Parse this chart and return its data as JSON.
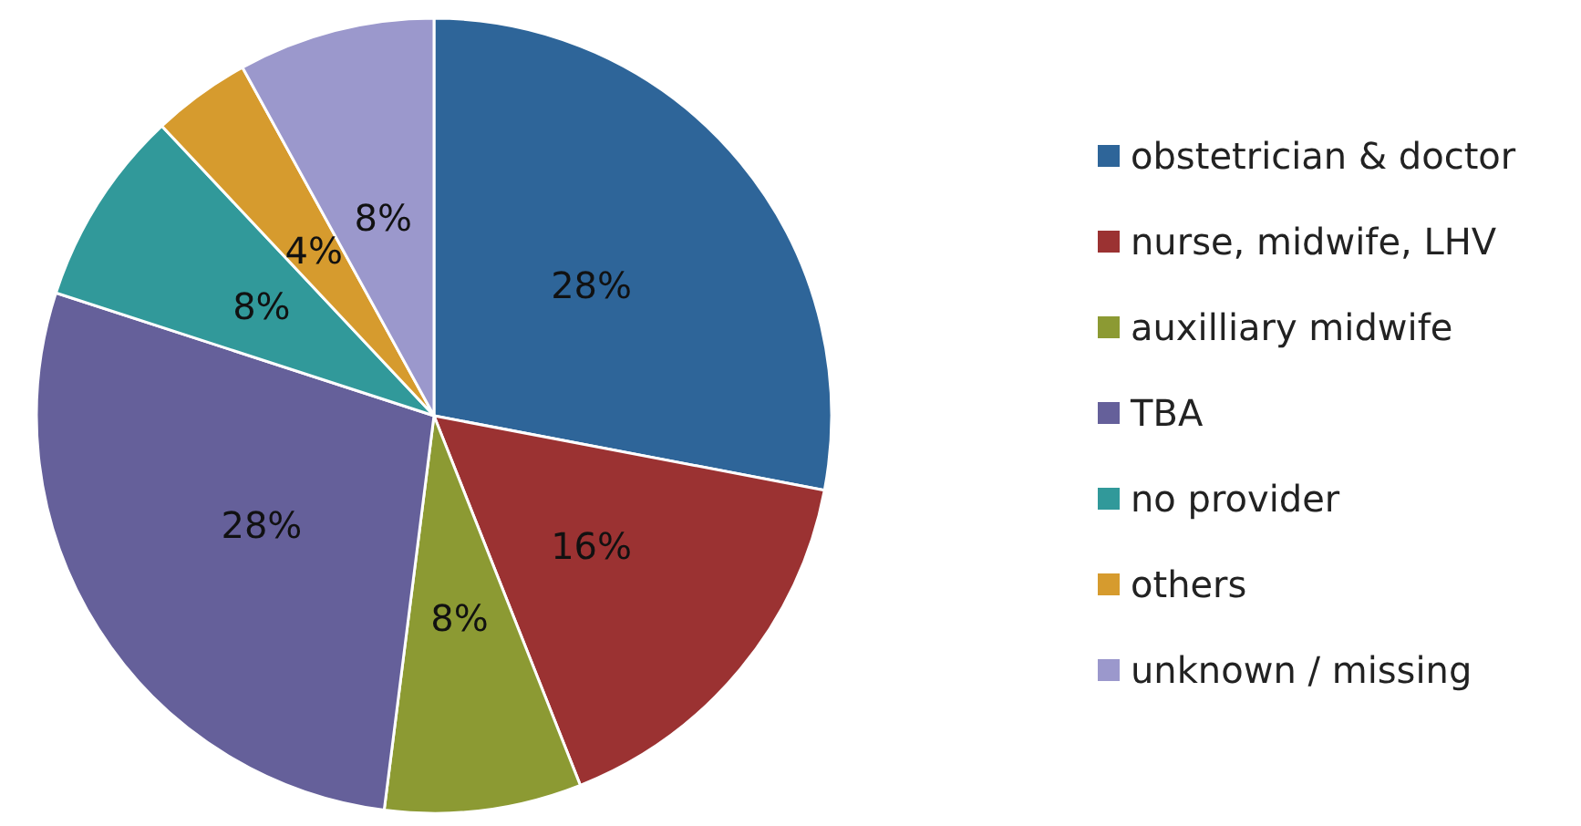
{
  "chart_data": {
    "type": "pie",
    "categories": [
      "obstetrician & doctor",
      "nurse, midwife, LHV",
      "auxilliary midwife",
      "TBA",
      "no provider",
      "others",
      "unknown / missing"
    ],
    "values": [
      28,
      16,
      8,
      28,
      8,
      4,
      8
    ],
    "colors": [
      "#2e6599",
      "#9b3232",
      "#8c9a33",
      "#65609a",
      "#31999a",
      "#d69b2e",
      "#9b98cc"
    ],
    "value_labels": [
      "28%",
      "16%",
      "8%",
      "28%",
      "8%",
      "4%",
      "8%"
    ],
    "legend": "right"
  }
}
